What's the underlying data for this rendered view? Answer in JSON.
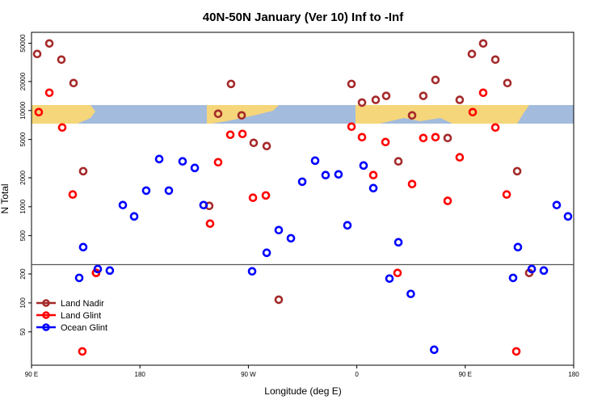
{
  "chart_data": {
    "type": "scatter",
    "title": "40N-50N January (Ver 10)   Inf to -Inf",
    "xlabel": "Longitude (deg E)",
    "ylabel": "N Total",
    "ylog": true,
    "xlim": [
      90,
      540
    ],
    "ylim": [
      22.5,
      65000
    ],
    "xticks": [
      {
        "value": 90,
        "label": "90 E"
      },
      180,
      {
        "value": 270,
        "label": "90 W"
      },
      {
        "value": 360,
        "label": "0"
      },
      {
        "value": 450,
        "label": "90 E"
      },
      {
        "value": 540,
        "label": "180"
      }
    ],
    "yticks": [
      50,
      100,
      200,
      500,
      1000,
      2000,
      5000,
      10000,
      20000,
      50000
    ],
    "hline": 250,
    "legend": "bottomleft",
    "series": [
      {
        "name": "Land Nadir",
        "color": "#a52a2a",
        "x": [
          94.7,
          104.8,
          114.8,
          124.9,
          132.9,
          143.6,
          237.5,
          244.9,
          255.6,
          264.4,
          274.4,
          285.2,
          295.2,
          355.6,
          364.3,
          375.7,
          384.4,
          394.5,
          405.9,
          415.2,
          425.3,
          435.4,
          445.4,
          455.5,
          464.9,
          475.0,
          485.0,
          493.1,
          503.1
        ],
        "values": [
          38700,
          49800,
          33800,
          19300,
          2340,
          205,
          1020,
          9250,
          18900,
          8900,
          4610,
          4270,
          108,
          18900,
          12100,
          12900,
          14200,
          2960,
          8900,
          14200,
          20800,
          5180,
          12900,
          38700,
          49800,
          33800,
          19300,
          2340,
          205
        ]
      },
      {
        "name": "Land Glint",
        "color": "#ff0000",
        "x": [
          96.0,
          104.8,
          115.5,
          124.2,
          132.2,
          143.6,
          238.2,
          244.9,
          255.0,
          265.1,
          273.8,
          284.5,
          355.6,
          364.3,
          373.7,
          383.8,
          393.8,
          405.9,
          415.2,
          425.3,
          435.4,
          445.4,
          456.2,
          464.9,
          475.0,
          484.4,
          492.4
        ],
        "values": [
          9620,
          15300,
          6660,
          1340,
          31.3,
          205,
          667,
          2900,
          5600,
          5710,
          1240,
          1310,
          6790,
          5280,
          2130,
          4700,
          205,
          1720,
          5180,
          5280,
          1150,
          3260,
          9620,
          15300,
          6660,
          1340,
          31.3
        ]
      },
      {
        "name": "Ocean Glint",
        "color": "#0000ff",
        "x": [
          129.6,
          132.9,
          145.0,
          155.0,
          165.8,
          175.2,
          185.2,
          196.0,
          204.0,
          215.4,
          225.5,
          232.8,
          273.1,
          285.2,
          295.2,
          305.3,
          314.7,
          325.4,
          334.1,
          344.8,
          352.2,
          365.6,
          373.7,
          387.1,
          394.5,
          404.8,
          424.2,
          493.7,
          489.7,
          505.2,
          515.2,
          525.9,
          535.3
        ],
        "values": [
          182,
          380,
          225,
          217,
          1040,
          793,
          1470,
          3130,
          1470,
          2960,
          2530,
          1040,
          213,
          332,
          571,
          470,
          1820,
          3010,
          2130,
          2170,
          641,
          2680,
          1560,
          179,
          427,
          124,
          32.6,
          380,
          182,
          225,
          217,
          1040,
          793
        ]
      }
    ]
  }
}
